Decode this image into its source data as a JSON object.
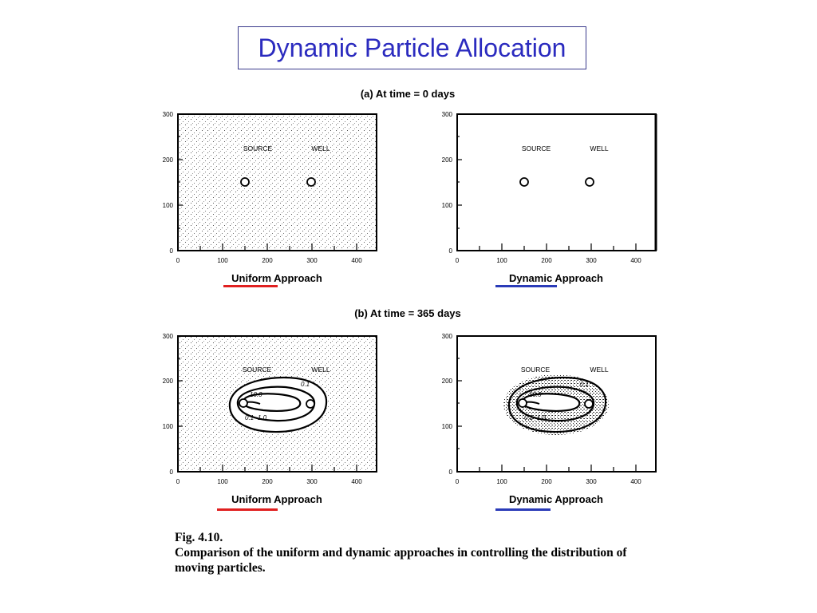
{
  "slide": {
    "title": "Dynamic Particle Allocation",
    "title_color": "#2b2bbf"
  },
  "figure": {
    "panel_a_title": "(a) At time = 0 days",
    "panel_b_title": "(b) At time = 365 days",
    "y_ticks": [
      "300",
      "200",
      "100",
      "0"
    ],
    "x_ticks": [
      "0",
      "100",
      "200",
      "300",
      "400"
    ],
    "source_label": "SOURCE",
    "well_label": "WELL",
    "uniform_label": "Uniform Approach",
    "dynamic_label": "Dynamic Approach",
    "uniform_underline_color": "#e02020",
    "dynamic_underline_color": "#2a3bb8",
    "contour_labels": [
      "0.1",
      "10.0",
      "0.1",
      "1.0"
    ],
    "source_point": [
      150,
      150
    ],
    "well_point": [
      300,
      150
    ],
    "x_range": [
      0,
      450
    ],
    "y_range": [
      0,
      300
    ]
  },
  "caption": {
    "line1": "Fig. 4.10.",
    "line2": "Comparison of the uniform and dynamic approaches in controlling the distribution of",
    "line3": "moving particles."
  }
}
